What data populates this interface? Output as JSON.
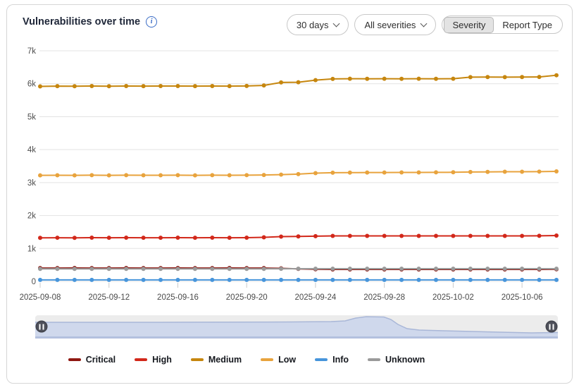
{
  "header": {
    "title": "Vulnerabilities over time",
    "info_icon": "i"
  },
  "controls": {
    "range_select": {
      "value": "30 days"
    },
    "severity_select": {
      "value": "All severities"
    },
    "view_toggle": {
      "options": [
        "Severity",
        "Report Type"
      ],
      "selected": "Severity"
    }
  },
  "chart_data": {
    "type": "line",
    "title": "Vulnerabilities over time",
    "xlabel": "",
    "ylabel": "",
    "ylim": [
      0,
      7000
    ],
    "ytick_labels": [
      "0",
      "1k",
      "2k",
      "3k",
      "4k",
      "5k",
      "6k",
      "7k"
    ],
    "grid": true,
    "legend_position": "bottom",
    "x": [
      "2025-09-08",
      "2025-09-09",
      "2025-09-10",
      "2025-09-11",
      "2025-09-12",
      "2025-09-13",
      "2025-09-14",
      "2025-09-15",
      "2025-09-16",
      "2025-09-17",
      "2025-09-18",
      "2025-09-19",
      "2025-09-20",
      "2025-09-21",
      "2025-09-22",
      "2025-09-23",
      "2025-09-24",
      "2025-09-25",
      "2025-09-26",
      "2025-09-27",
      "2025-09-28",
      "2025-09-29",
      "2025-09-30",
      "2025-10-01",
      "2025-10-02",
      "2025-10-03",
      "2025-10-04",
      "2025-10-05",
      "2025-10-06",
      "2025-10-07",
      "2025-10-08"
    ],
    "xtick_labels": [
      "2025-09-08",
      "2025-09-12",
      "2025-09-16",
      "2025-09-20",
      "2025-09-24",
      "2025-09-28",
      "2025-10-02",
      "2025-10-06"
    ],
    "xtick_indices": [
      0,
      4,
      8,
      12,
      16,
      20,
      24,
      28
    ],
    "series": [
      {
        "name": "Critical",
        "color": "#8f1711",
        "values": [
          405,
          405,
          406,
          405,
          405,
          406,
          405,
          405,
          406,
          405,
          405,
          406,
          405,
          403,
          395,
          380,
          368,
          365,
          365,
          365,
          365,
          365,
          365,
          365,
          365,
          365,
          365,
          365,
          365,
          365,
          368
        ]
      },
      {
        "name": "High",
        "color": "#d2281a",
        "values": [
          1322,
          1326,
          1323,
          1327,
          1324,
          1327,
          1324,
          1325,
          1327,
          1324,
          1327,
          1325,
          1327,
          1338,
          1360,
          1366,
          1374,
          1380,
          1380,
          1382,
          1380,
          1382,
          1380,
          1381,
          1380,
          1382,
          1380,
          1382,
          1380,
          1383,
          1392
        ]
      },
      {
        "name": "Medium",
        "color": "#c6860e",
        "values": [
          5920,
          5928,
          5924,
          5930,
          5926,
          5931,
          5927,
          5929,
          5931,
          5927,
          5931,
          5928,
          5933,
          5950,
          6040,
          6046,
          6110,
          6148,
          6152,
          6150,
          6153,
          6150,
          6152,
          6150,
          6152,
          6200,
          6202,
          6200,
          6203,
          6206,
          6258
        ]
      },
      {
        "name": "Low",
        "color": "#e8a33d",
        "values": [
          3218,
          3222,
          3220,
          3224,
          3220,
          3224,
          3221,
          3222,
          3224,
          3220,
          3224,
          3222,
          3226,
          3230,
          3242,
          3256,
          3286,
          3300,
          3302,
          3304,
          3305,
          3307,
          3308,
          3310,
          3312,
          3320,
          3324,
          3328,
          3330,
          3333,
          3340
        ]
      },
      {
        "name": "Info",
        "color": "#4795db",
        "values": [
          45,
          45,
          45,
          45,
          45,
          45,
          45,
          45,
          45,
          45,
          45,
          45,
          45,
          45,
          45,
          45,
          45,
          45,
          45,
          45,
          45,
          45,
          45,
          45,
          45,
          45,
          45,
          45,
          45,
          45,
          46
        ]
      },
      {
        "name": "Unknown",
        "color": "#9a9a9a",
        "values": [
          380,
          380,
          381,
          380,
          380,
          381,
          380,
          380,
          381,
          380,
          380,
          381,
          380,
          381,
          383,
          385,
          385,
          385,
          385,
          385,
          385,
          385,
          385,
          385,
          385,
          385,
          385,
          385,
          385,
          385,
          386
        ]
      }
    ]
  },
  "brush": {
    "handle_icon": "pause-bars",
    "area_points": [
      [
        0,
        10
      ],
      [
        180,
        10
      ],
      [
        360,
        9.5
      ],
      [
        420,
        9
      ],
      [
        440,
        8
      ],
      [
        455,
        4
      ],
      [
        470,
        2
      ],
      [
        495,
        2.5
      ],
      [
        505,
        6
      ],
      [
        515,
        13
      ],
      [
        528,
        19
      ],
      [
        545,
        21
      ],
      [
        580,
        22
      ],
      [
        620,
        23
      ],
      [
        660,
        24
      ],
      [
        705,
        25
      ],
      [
        742,
        24.5
      ]
    ]
  }
}
